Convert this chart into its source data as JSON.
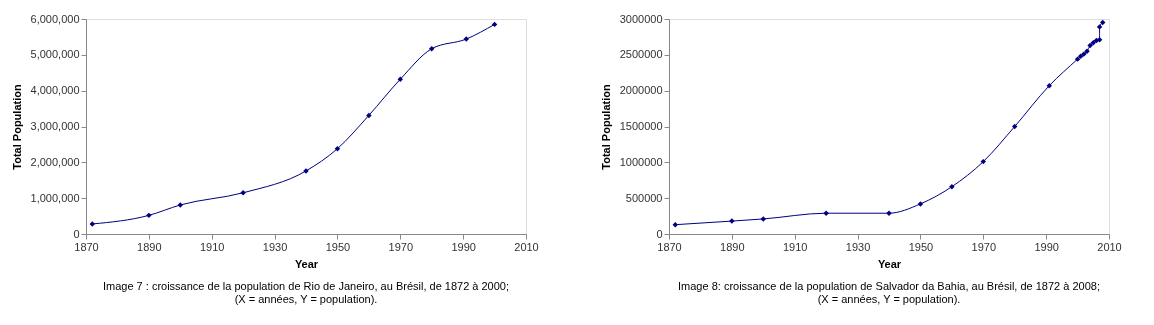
{
  "chart_data": [
    {
      "type": "line",
      "xlabel": "Year",
      "ylabel": "Total Population",
      "marker": "diamond",
      "line_style": "solid",
      "grid": false,
      "x": [
        1872,
        1890,
        1900,
        1920,
        1940,
        1950,
        1960,
        1970,
        1980,
        1991,
        2000
      ],
      "series": [
        {
          "color": "#000080",
          "values": [
            280000,
            520000,
            810000,
            1150000,
            1760000,
            2380000,
            3310000,
            4320000,
            5170000,
            5440000,
            5850000
          ]
        }
      ],
      "xlim": [
        1870,
        2010
      ],
      "xticks": [
        1870,
        1890,
        1910,
        1930,
        1950,
        1970,
        1990,
        2010
      ],
      "ylim": [
        0,
        6000000
      ],
      "yticks": [
        0,
        {
          "value": 1000000,
          "label": "1,000,000"
        },
        {
          "value": 2000000,
          "label": "2,000,000"
        },
        {
          "value": 3000000,
          "label": "3,000,000"
        },
        {
          "value": 4000000,
          "label": "4,000,000"
        },
        {
          "value": 5000000,
          "label": "5,000,000"
        },
        {
          "value": 6000000,
          "label": "6,000,000"
        }
      ],
      "annotations": [
        "Image 7 : croissance de la population de Rio de Janeiro, au Brésil, de 1872 à 2000;\n(X  = années, Y = population)."
      ]
    },
    {
      "type": "line",
      "xlabel": "Year",
      "ylabel": "Total Population",
      "marker": "diamond",
      "line_style": "solid",
      "grid": false,
      "x": [
        1872,
        1890,
        1900,
        1920,
        1940,
        1950,
        1960,
        1970,
        1980,
        1991,
        2000,
        2001,
        2002,
        2003,
        2004,
        2005,
        2006,
        2007,
        2007,
        2008
      ],
      "series": [
        {
          "color": "#000080",
          "values": [
            130000,
            180000,
            210000,
            290000,
            290000,
            420000,
            660000,
            1010000,
            1500000,
            2070000,
            2440000,
            2480000,
            2510000,
            2550000,
            2630000,
            2670000,
            2700000,
            2710000,
            2890000,
            2950000
          ]
        }
      ],
      "xlim": [
        1870,
        2010
      ],
      "xticks": [
        1870,
        1890,
        1910,
        1930,
        1950,
        1970,
        1990,
        2010
      ],
      "ylim": [
        0,
        3000000
      ],
      "yticks": [
        0,
        500000,
        1000000,
        1500000,
        2000000,
        2500000,
        3000000
      ],
      "annotations": [
        "Image 8: croissance de la population de Salvador da Bahia, au Brésil, de 1872 à 2008;\n(X = années, Y = population)."
      ]
    }
  ]
}
